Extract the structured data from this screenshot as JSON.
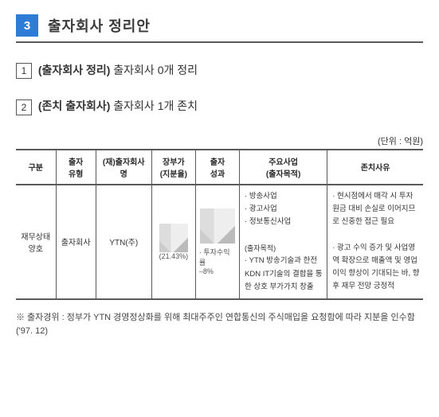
{
  "heading": {
    "number": "3",
    "text": "출자회사 정리안"
  },
  "subheads": [
    {
      "num": "1",
      "bold": "(출자회사 정리)",
      "rest": " 출자회사 0개 정리"
    },
    {
      "num": "2",
      "bold": "(존치 출자회사)",
      "rest": " 출자회사 1개 존치"
    }
  ],
  "unit": "(단위 : 억원)",
  "table": {
    "cols": [
      "구분",
      "출자\n유형",
      "(재)출자회사명",
      "장부가\n(지분율)",
      "출자\n성과",
      "주요사업\n(출자목적)",
      "존치사유"
    ],
    "widths": [
      50,
      50,
      70,
      55,
      55,
      110,
      120
    ],
    "row": {
      "c0": "재무상태\n양호",
      "c1": "출자회사",
      "c2": "YTN(주)",
      "c3_sub": "(21.43%)",
      "c4_sub": "· 투자수익률\n  –8%",
      "c5_lines": [
        "방송사업",
        "광고사업",
        "정보통신사업",
        "",
        "(출자목적)",
        "YTN 방송기술과 한전KDN IT기술의 결합을 통한 상호 부가가치 창출"
      ],
      "c6_lines": [
        "현시점에서 매각 시 투자원금 대비 손실로 이어지므로 신중한 접근 필요",
        "",
        "광고 수익 증가 및 사업영역 확장으로 매출액 및 영업이익 향상이 기대되는 바, 향후 재무 전망 긍정적"
      ]
    }
  },
  "footnote": "※ 출자경위 : 정부가 YTN 경영정상화를 위해 최대주주인 연합통신의 주식매입을 요청함에 따라 지분을 인수함('97. 12)"
}
